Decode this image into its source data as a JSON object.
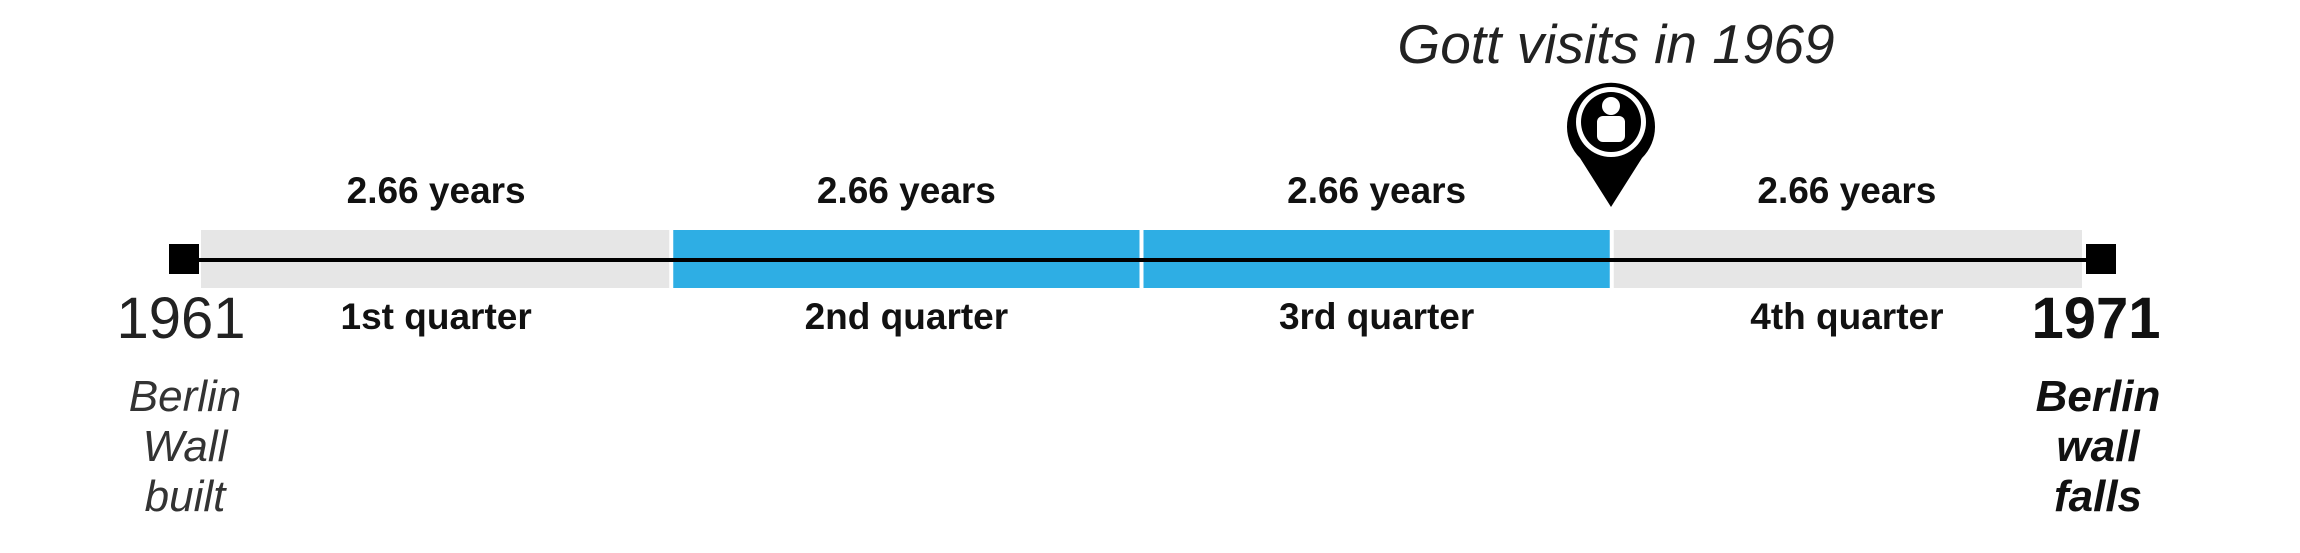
{
  "annotation": {
    "title": "Gott visits in 1969",
    "icon": "person-map-pin-icon"
  },
  "timeline": {
    "start": {
      "year": "1961",
      "event": "Berlin\nWall\nbuilt"
    },
    "end": {
      "year": "1971",
      "event": "Berlin\nwall\nfalls"
    },
    "quarters": [
      {
        "name": "1st quarter",
        "duration": "2.66 years",
        "highlighted": false
      },
      {
        "name": "2nd quarter",
        "duration": "2.66 years",
        "highlighted": true
      },
      {
        "name": "3rd quarter",
        "duration": "2.66 years",
        "highlighted": true
      },
      {
        "name": "4th quarter",
        "duration": "2.66 years",
        "highlighted": false
      }
    ]
  },
  "colors": {
    "highlight": "#2eaee4",
    "background_band": "#e6e6e6",
    "line": "#000000",
    "pin": "#000000"
  }
}
